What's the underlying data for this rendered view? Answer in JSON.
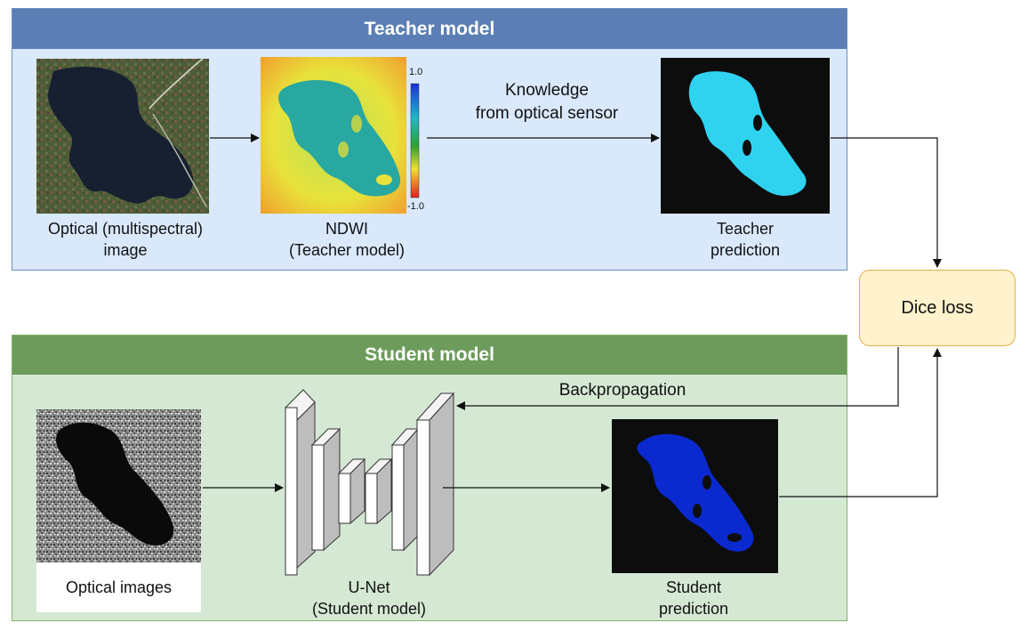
{
  "teacher": {
    "title": "Teacher model",
    "optical_label_1": "Optical (multispectral)",
    "optical_label_2": "image",
    "ndwi_label_1": "NDWI",
    "ndwi_label_2": "(Teacher model)",
    "colorbar_max": "1.0",
    "colorbar_min": "-1.0",
    "knowledge_label_1": "Knowledge",
    "knowledge_label_2": "from optical sensor",
    "prediction_label_1": "Teacher",
    "prediction_label_2": "prediction",
    "prediction_color": "#2fd3ef"
  },
  "dice_loss": "Dice loss",
  "student": {
    "title": "Student model",
    "backprop_label": "Backpropagation",
    "optical_images_label": "Optical images",
    "unet_label_1": "U-Net",
    "unet_label_2": "(Student model)",
    "prediction_label_1": "Student",
    "prediction_label_2": "prediction",
    "prediction_color": "#0a2ad0"
  }
}
